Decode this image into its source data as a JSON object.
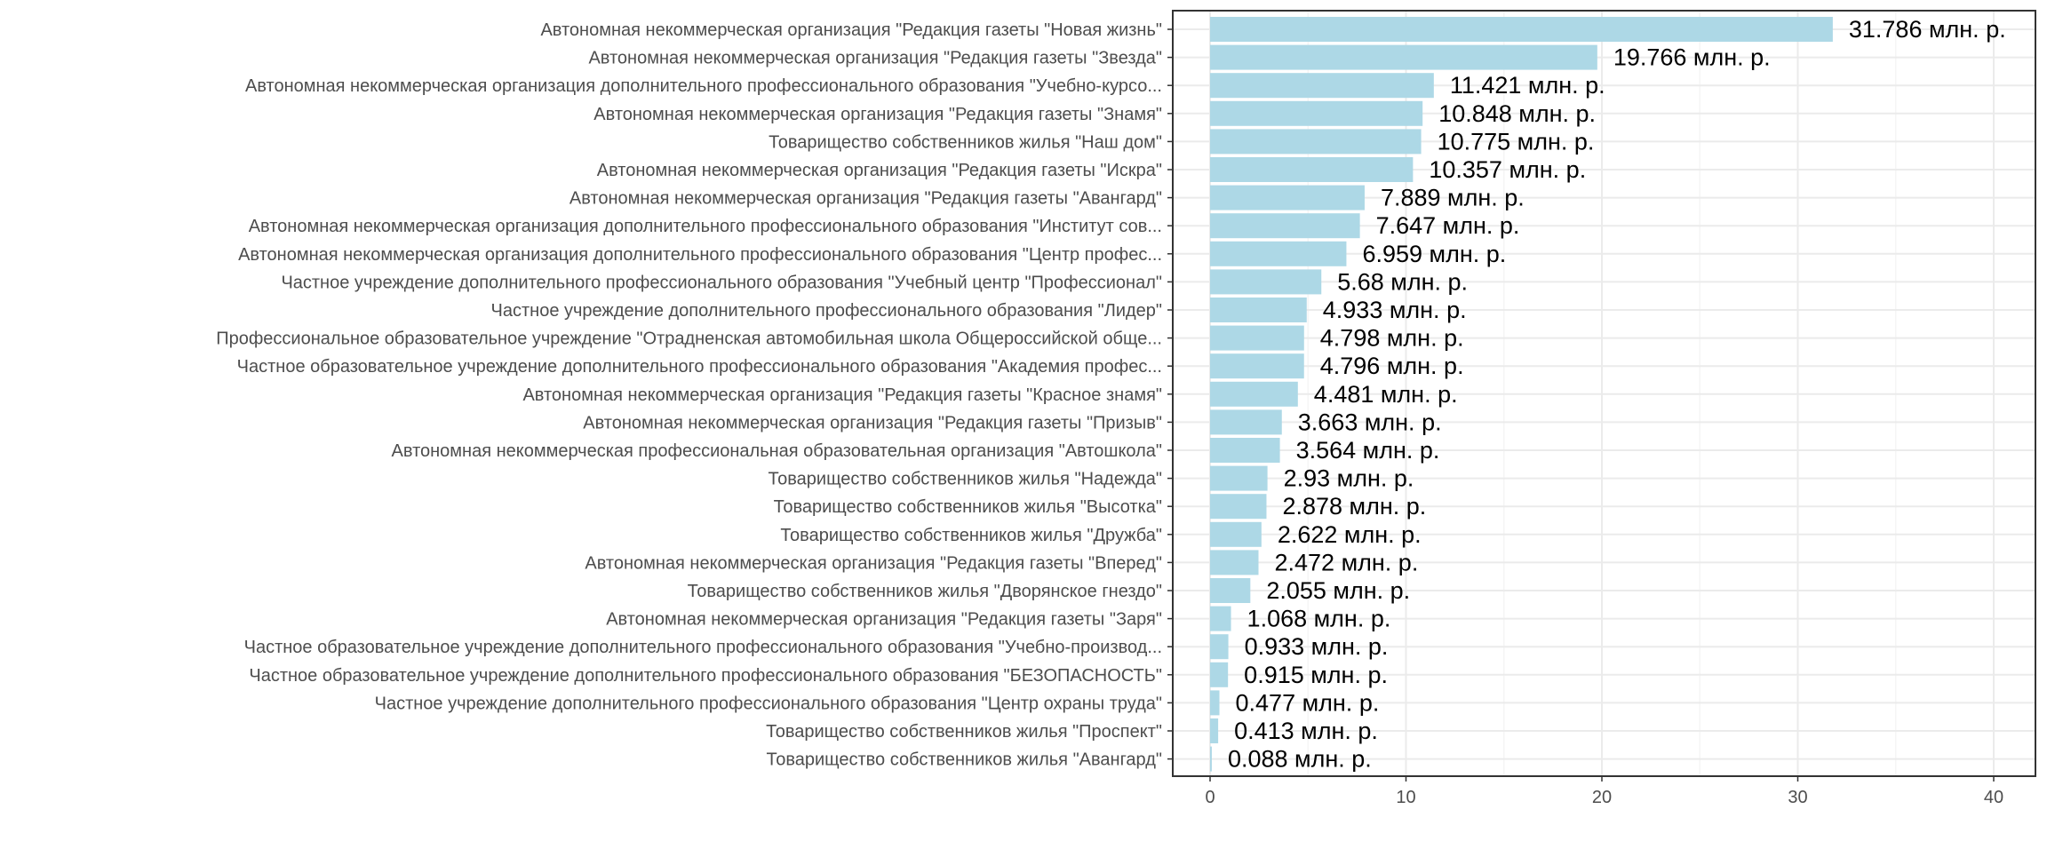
{
  "colors": {
    "bar": "#add8e6",
    "panel_border": "#333333",
    "grid_major": "#ebebeb",
    "grid_minor": "#f5f5f5",
    "text": "#4d4d4d",
    "label": "#000000"
  },
  "chart_data": {
    "type": "bar",
    "orientation": "horizontal",
    "title": "",
    "xlabel": "",
    "ylabel": "",
    "xlim": [
      0,
      42
    ],
    "x_ticks": [
      0,
      10,
      20,
      30,
      40
    ],
    "grid": true,
    "legend": "none",
    "value_suffix": " млн. р.",
    "categories": [
      "Автономная некоммерческая организация \"Редакция газеты \"Новая жизнь\"",
      "Автономная некоммерческая организация \"Редакция газеты \"Звезда\"",
      "Автономная некоммерческая организация дополнительного профессионального образования \"Учебно-курсо...",
      "Автономная некоммерческая организация \"Редакция газеты \"Знамя\"",
      "Товарищество собственников жилья \"Наш дом\"",
      "Автономная некоммерческая организация \"Редакция газеты \"Искра\"",
      "Автономная некоммерческая организация \"Редакция газеты \"Авангард\"",
      "Автономная некоммерческая организация дополнительного профессионального образования \"Институт сов...",
      "Автономная некоммерческая организация дополнительного профессионального образования \"Центр профес...",
      "Частное учреждение дополнительного профессионального образования \"Учебный центр \"Профессионал\"",
      "Частное учреждение дополнительного профессионального образования \"Лидер\"",
      "Профессиональное образовательное учреждение \"Отрадненская автомобильная школа Общероссийской обще...",
      "Частное образовательное учреждение дополнительного профессионального образования \"Академия профес...",
      "Автономная некоммерческая организация \"Редакция газеты \"Красное знамя\"",
      "Автономная некоммерческая организация \"Редакция газеты \"Призыв\"",
      "Автономная некоммерческая профессиональная образовательная организация \"Автошкола\"",
      "Товарищество собственников жилья \"Надежда\"",
      "Товарищество собственников жилья \"Высотка\"",
      "Товарищество собственников жилья \"Дружба\"",
      "Автономная некоммерческая организация \"Редакция газеты \"Вперед\"",
      "Товарищество собственников жилья \"Дворянское гнездо\"",
      "Автономная некоммерческая организация \"Редакция газеты \"Заря\"",
      "Частное образовательное учреждение дополнительного профессионального образования \"Учебно-производ...",
      "Частное образовательное учреждение дополнительного профессионального образования \"БЕЗОПАСНОСТЬ\"",
      "Частное учреждение дополнительного профессионального образования \"Центр охраны труда\"",
      "Товарищество собственников жилья \"Проспект\"",
      "Товарищество собственников жилья \"Авангард\""
    ],
    "values": [
      31.786,
      19.766,
      11.421,
      10.848,
      10.775,
      10.357,
      7.889,
      7.647,
      6.959,
      5.68,
      4.933,
      4.798,
      4.796,
      4.481,
      3.663,
      3.564,
      2.93,
      2.878,
      2.622,
      2.472,
      2.055,
      1.068,
      0.933,
      0.915,
      0.477,
      0.413,
      0.088
    ],
    "labels": [
      "31.786 млн. р.",
      "19.766 млн. р.",
      "11.421 млн. р.",
      "10.848 млн. р.",
      "10.775 млн. р.",
      "10.357 млн. р.",
      "7.889 млн. р.",
      "7.647 млн. р.",
      "6.959 млн. р.",
      "5.68 млн. р.",
      "4.933 млн. р.",
      "4.798 млн. р.",
      "4.796 млн. р.",
      "4.481 млн. р.",
      "3.663 млн. р.",
      "3.564 млн. р.",
      "2.93 млн. р.",
      "2.878 млн. р.",
      "2.622 млн. р.",
      "2.472 млн. р.",
      "2.055 млн. р.",
      "1.068 млн. р.",
      "0.933 млн. р.",
      "0.915 млн. р.",
      "0.477 млн. р.",
      "0.413 млн. р.",
      "0.088 млн. р."
    ]
  }
}
